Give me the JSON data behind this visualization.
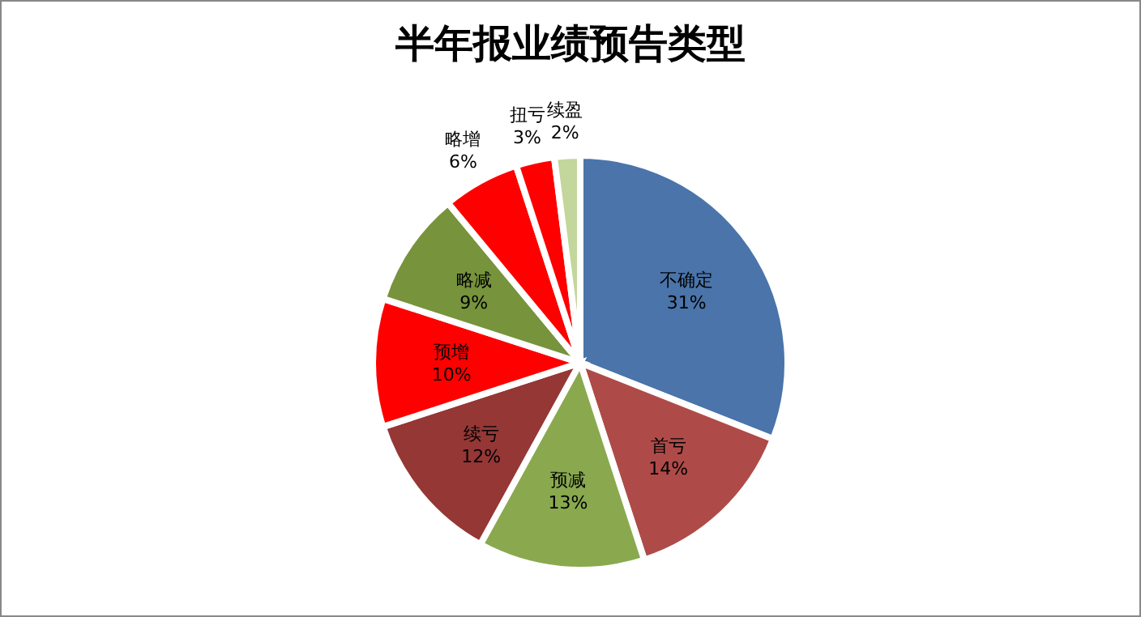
{
  "chart_data": {
    "type": "pie",
    "title": "半年报业绩预告类型",
    "categories": [
      "不确定",
      "首亏",
      "预减",
      "续亏",
      "预增",
      "略减",
      "略增",
      "扭亏",
      "续盈"
    ],
    "values": [
      31,
      14,
      13,
      12,
      10,
      9,
      6,
      3,
      2
    ],
    "value_labels": [
      "31%",
      "14%",
      "13%",
      "12%",
      "10%",
      "9%",
      "6%",
      "3%",
      "2%"
    ],
    "colors": [
      "#4a74aa",
      "#ae4b48",
      "#8aa94f",
      "#953735",
      "#ff0000",
      "#77933c",
      "#ff0000",
      "#ff0000",
      "#c3d69b"
    ]
  }
}
